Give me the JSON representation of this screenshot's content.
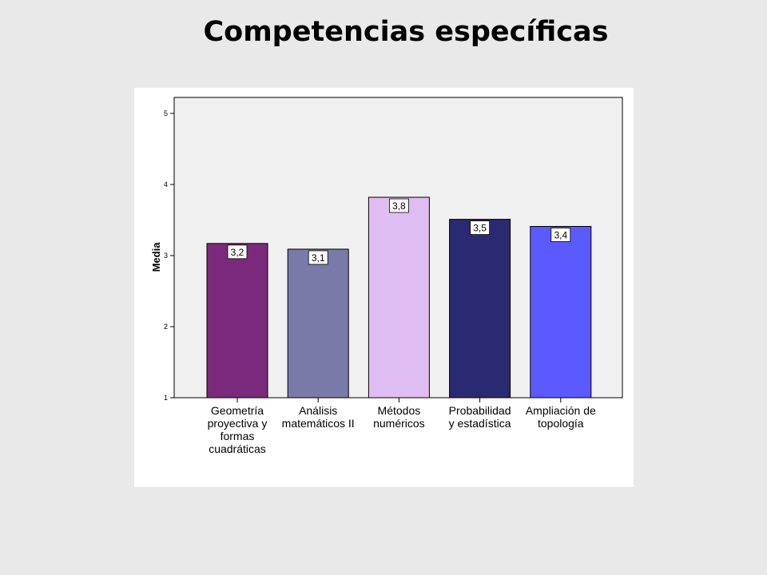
{
  "slide": {
    "title": "Competencias específicas"
  },
  "colors": {
    "page_background": "#e9e9e9",
    "plot_background": "#f0f0f0",
    "bars": [
      "#7b2a7b",
      "#797aa8",
      "#dfbcf1",
      "#2a2a72",
      "#5a5aff"
    ]
  },
  "chart_data": {
    "type": "bar",
    "title": "",
    "xlabel": "",
    "ylabel": "Media",
    "ylim": [
      1,
      5
    ],
    "yticks": [
      "1",
      "2",
      "3",
      "4",
      "5"
    ],
    "grid": false,
    "categories": [
      [
        "Geometría",
        "proyectiva y",
        "formas",
        "cuadráticas"
      ],
      [
        "Análisis",
        "matemáticos II"
      ],
      [
        "Métodos",
        "numéricos"
      ],
      [
        "Probabilidad",
        "y estadística"
      ],
      [
        "Ampliación de",
        "topología"
      ]
    ],
    "values": [
      3.17,
      3.09,
      3.82,
      3.51,
      3.41
    ],
    "data_labels": [
      "3,2",
      "3,1",
      "3,8",
      "3,5",
      "3,4"
    ]
  }
}
